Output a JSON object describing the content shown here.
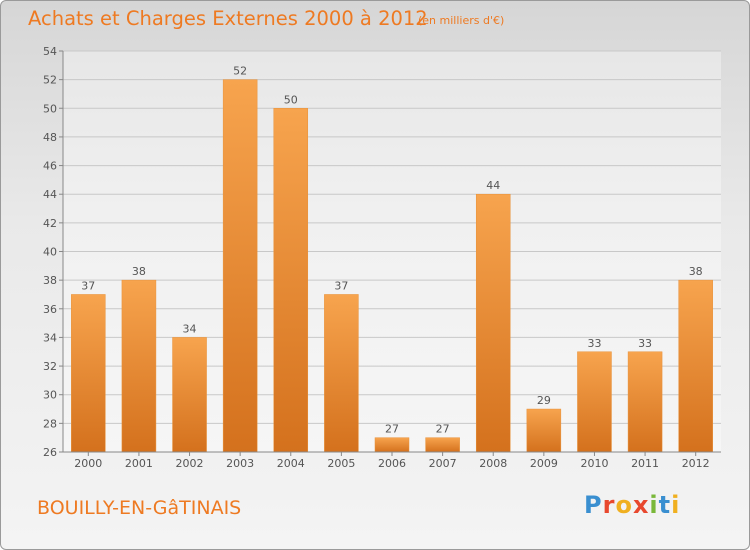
{
  "header": {
    "title": "Achats et Charges Externes 2000 à 2012",
    "subtitle": "(en milliers d'€)"
  },
  "footer": {
    "commune": "BOUILLY-EN-GâTINAIS",
    "logo_letters": [
      "P",
      "r",
      "o",
      "x",
      "i",
      "t",
      "i"
    ],
    "logo_colors": [
      "#3a8fd0",
      "#e8482e",
      "#f0b020",
      "#e8482e",
      "#7ab83a",
      "#3a8fd0",
      "#f0b020"
    ]
  },
  "colors": {
    "bar_light": "#f7a44e",
    "bar_dark": "#d4711d",
    "text": "#555555",
    "accent": "#ee7a22"
  },
  "chart_data": {
    "type": "bar",
    "categories": [
      "2000",
      "2001",
      "2002",
      "2003",
      "2004",
      "2005",
      "2006",
      "2007",
      "2008",
      "2009",
      "2010",
      "2011",
      "2012"
    ],
    "values": [
      37,
      38,
      34,
      52,
      50,
      37,
      27,
      27,
      44,
      29,
      33,
      33,
      38
    ],
    "title": "Achats et Charges Externes 2000 à 2012",
    "xlabel": "",
    "ylabel": "",
    "ylim": [
      26,
      54
    ],
    "yticks": [
      26,
      28,
      30,
      32,
      34,
      36,
      38,
      40,
      42,
      44,
      46,
      48,
      50,
      52,
      54
    ],
    "grid": true,
    "legend": "none"
  }
}
